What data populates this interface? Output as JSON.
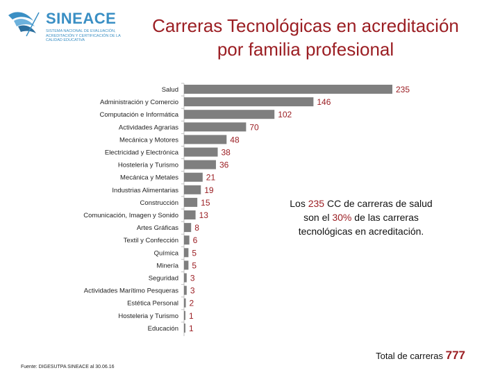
{
  "logo": {
    "name": "SINEACE",
    "subtitle": "SISTEMA NACIONAL DE EVALUACIÓN, ACREDITACIÓN Y CERTIFICACIÓN DE LA CALIDAD EDUCATIVA"
  },
  "title": {
    "line1": "Carreras Tecnológicas en acreditación",
    "line2": "por familia profesional"
  },
  "chart_data": {
    "type": "bar",
    "orientation": "horizontal",
    "title": "Carreras Tecnológicas en acreditación por familia profesional",
    "categories": [
      "Salud",
      "Administración y Comercio",
      "Computación e Informática",
      "Actividades Agrarias",
      "Mecánica y Motores",
      "Electricidad y Electrónica",
      "Hostelería y Turismo",
      "Mecánica y Metales",
      "Industrias Alimentarias",
      "Construcción",
      "Comunicación, Imagen y Sonido",
      "Artes Gráficas",
      "Textil y Confección",
      "Química",
      "Minería",
      "Seguridad",
      "Actividades Marítimo Pesqueras",
      "Estética Personal",
      "Hosteleria y Turismo",
      "Educación"
    ],
    "values": [
      235,
      146,
      102,
      70,
      48,
      38,
      36,
      21,
      19,
      15,
      13,
      8,
      6,
      5,
      5,
      3,
      3,
      2,
      1,
      1
    ],
    "xlim": [
      0,
      235
    ],
    "bar_color": "#7f7f7f",
    "value_label_color": "#9b1e23",
    "grid": false
  },
  "callout": {
    "part1": "Los ",
    "hl1": "235",
    "part2": " CC de carreras de salud son el ",
    "hl2": "30%",
    "part3": " de las carreras tecnológicas en acreditación."
  },
  "total": {
    "label": "Total de carreras",
    "value": "777"
  },
  "source": "Fuente: DIGESUTPA SINEACE al 30.06.16",
  "colors": {
    "title": "#9b1e23",
    "logo": "#3a8fc4"
  }
}
